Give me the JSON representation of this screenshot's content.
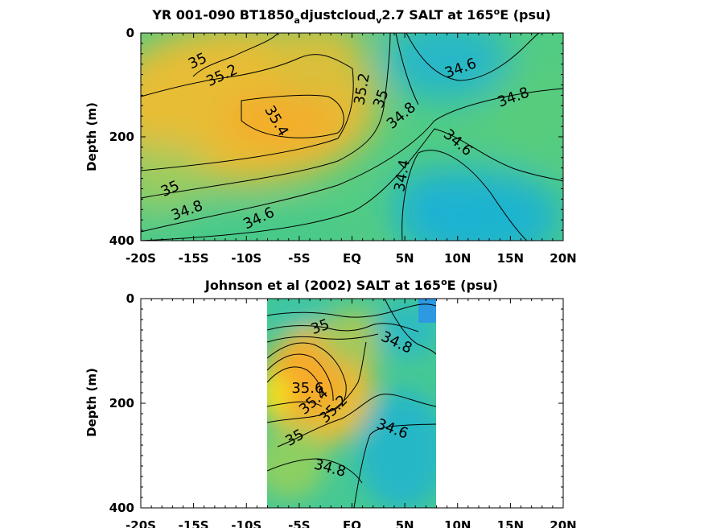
{
  "chart_data": [
    {
      "type": "heatmap",
      "title_parts": {
        "a": "YR 001-090 BT1850",
        "b": "a",
        "c": "djustcloud",
        "d": "v",
        "e": "2.7 SALT at 165",
        "f": "o",
        "g": "E (psu)"
      },
      "xlabel": "",
      "ylabel": "Depth (m)",
      "xlim": [
        -20,
        20
      ],
      "ylim": [
        400,
        0
      ],
      "x_ticks": [
        -20,
        -15,
        -10,
        -5,
        0,
        5,
        10,
        15,
        20
      ],
      "x_tick_labels": [
        "-20S",
        "-15S",
        "-10S",
        "-5S",
        "EQ",
        "5N",
        "10N",
        "15N",
        "20N"
      ],
      "y_ticks": [
        0,
        200,
        400
      ],
      "y_tick_labels": [
        "0",
        "200",
        "400"
      ],
      "colors": {
        "low": "#1ea0d8",
        "mid": "#3cc58a",
        "high": "#f2ae2e"
      },
      "contour_labels": [
        {
          "text": "35",
          "x": -14.6,
          "y": 55
        },
        {
          "text": "35.2",
          "x": -12.3,
          "y": 83
        },
        {
          "text": "35.4",
          "x": -7.2,
          "y": 170
        },
        {
          "text": "35.2",
          "x": 1.0,
          "y": 108
        },
        {
          "text": "35",
          "x": 2.8,
          "y": 127
        },
        {
          "text": "34.8",
          "x": 4.7,
          "y": 160
        },
        {
          "text": "34.6",
          "x": 10.3,
          "y": 69
        },
        {
          "text": "34.8",
          "x": 15.3,
          "y": 125
        },
        {
          "text": "34.6",
          "x": 10.0,
          "y": 212
        },
        {
          "text": "34.4",
          "x": 4.8,
          "y": 275
        },
        {
          "text": "35",
          "x": -17.2,
          "y": 301
        },
        {
          "text": "34.8",
          "x": -15.6,
          "y": 343
        },
        {
          "text": "34.6",
          "x": -8.8,
          "y": 358
        }
      ]
    },
    {
      "type": "heatmap",
      "title_parts": {
        "a": "Johnson et al (2002) SALT at 165",
        "b": "o",
        "c": "E (psu)"
      },
      "xlabel": "",
      "ylabel": "Depth (m)",
      "xlim": [
        -20,
        20
      ],
      "ylim": [
        400,
        0
      ],
      "data_extent_x": [
        -8,
        8
      ],
      "x_ticks": [
        -20,
        -15,
        -10,
        -5,
        0,
        5,
        10,
        15,
        20
      ],
      "x_tick_labels": [
        "-20S",
        "-15S",
        "-10S",
        "-5S",
        "EQ",
        "5N",
        "10N",
        "15N",
        "20N"
      ],
      "y_ticks": [
        0,
        200,
        400
      ],
      "y_tick_labels": [
        "0",
        "200",
        "400"
      ],
      "colors": {
        "low": "#1ea0d8",
        "mid": "#3cc58a",
        "high": "#f2ae2e",
        "max": "#f6e81e"
      },
      "contour_labels": [
        {
          "text": "35",
          "x": -3.0,
          "y": 55
        },
        {
          "text": "34.8",
          "x": 4.2,
          "y": 85
        },
        {
          "text": "35.6",
          "x": -4.2,
          "y": 172
        },
        {
          "text": "35.4",
          "x": -3.6,
          "y": 197
        },
        {
          "text": "35.2",
          "x": -1.7,
          "y": 212
        },
        {
          "text": "35",
          "x": -5.4,
          "y": 267
        },
        {
          "text": "34.6",
          "x": 3.8,
          "y": 250
        },
        {
          "text": "34.8",
          "x": -2.1,
          "y": 325
        }
      ]
    }
  ]
}
